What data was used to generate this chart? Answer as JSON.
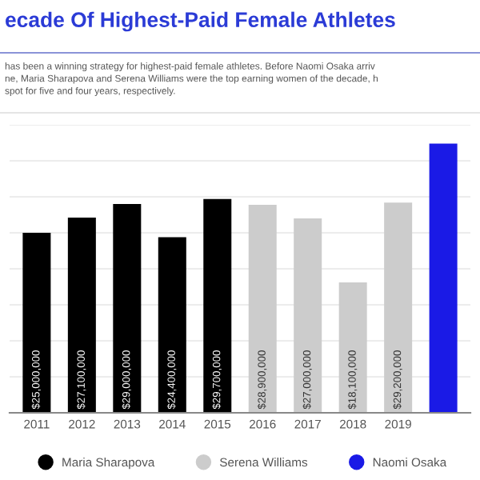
{
  "chart_data": {
    "type": "bar",
    "title": "ecade Of Highest-Paid Female Athletes",
    "subtitle": "has been a winning strategy for highest-paid female athletes. Before Naomi Osaka arriv\nne, Maria Sharapova and Serena Williams were the top earning women of the decade, h\nspot for five and four years, respectively.",
    "categories": [
      "2011",
      "2012",
      "2013",
      "2014",
      "2015",
      "2016",
      "2017",
      "2018",
      "2019",
      null
    ],
    "series": [
      {
        "name": "Maria Sharapova",
        "color": "#000000",
        "values": [
          25000000,
          27100000,
          29000000,
          24400000,
          29700000,
          null,
          null,
          null,
          null,
          null
        ],
        "value_labels": [
          "$25,000,000",
          "$27,100,000",
          "$29,000,000",
          "$24,400,000",
          "$29,700,000",
          null,
          null,
          null,
          null,
          null
        ]
      },
      {
        "name": "Serena Williams",
        "color": "#cccccc",
        "values": [
          null,
          null,
          null,
          null,
          null,
          28900000,
          27000000,
          18100000,
          29200000,
          null
        ],
        "value_labels": [
          null,
          null,
          null,
          null,
          null,
          "$28,900,000",
          "$27,000,000",
          "$18,100,000",
          "$29,200,000",
          null
        ]
      },
      {
        "name": "Naomi Osaka",
        "color": "#1a1ae6",
        "values": [
          null,
          null,
          null,
          null,
          null,
          null,
          null,
          null,
          null,
          37400000
        ]
      }
    ],
    "ylim": [
      0,
      40000000
    ],
    "yticks": [
      {
        "value": 0,
        "label": null
      },
      {
        "value": 5000000,
        "label": null
      },
      {
        "value": 10000000,
        "label": null
      },
      {
        "value": 15000000,
        "label": null
      },
      {
        "value": 20000000,
        "label": null
      },
      {
        "value": 25000000,
        "label": null
      },
      {
        "value": 30000000,
        "label": null
      },
      {
        "value": 35000000,
        "label": null
      },
      {
        "value": 40000000,
        "label": null
      }
    ],
    "grid": "y",
    "legend": "bottom",
    "tick_labels": "x"
  }
}
